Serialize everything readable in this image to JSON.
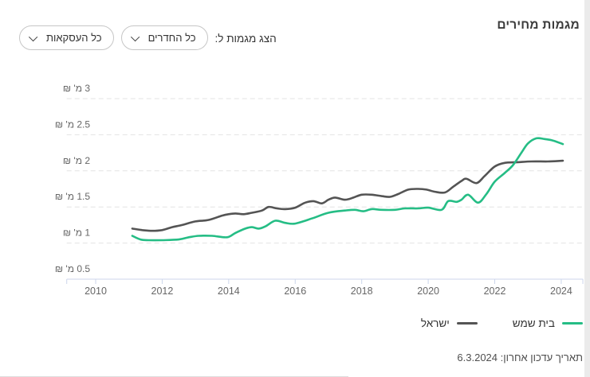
{
  "page": {
    "title": "מגמות מחירים",
    "controls": {
      "label": "הצג מגמות ל:",
      "rooms_dropdown": "כל החדרים",
      "deals_dropdown": "כל העסקאות"
    },
    "legend": [
      {
        "label": "בית שמש",
        "color": "#25bd85"
      },
      {
        "label": "ישראל",
        "color": "#545454"
      }
    ],
    "footer": {
      "last_update": "תאריך עדכון אחרון: 6.3.2024"
    }
  },
  "chart_data": {
    "type": "line",
    "title": "מגמות מחירים",
    "currency_unit": "מ' ₪",
    "x_ticks": [
      2010,
      2012,
      2014,
      2016,
      2018,
      2020,
      2022,
      2024
    ],
    "y_ticks": [
      {
        "value": 0.5,
        "label": "0.5 מ' ₪"
      },
      {
        "value": 1,
        "label": "1 מ' ₪"
      },
      {
        "value": 1.5,
        "label": "1.5 מ' ₪"
      },
      {
        "value": 2,
        "label": "2 מ' ₪"
      },
      {
        "value": 2.5,
        "label": "2.5 מ' ₪"
      },
      {
        "value": 3,
        "label": "3 מ' ₪"
      }
    ],
    "xlim": [
      2009.13,
      2024.65
    ],
    "ylim": [
      0.5,
      3
    ],
    "grid": "dashed-horizontal",
    "legend_position": "bottom-right",
    "colors": {
      "grid": "#e3e3e3",
      "axis": "#ccd6eb",
      "tick_text": "#666666"
    },
    "series": [
      {
        "name": "ישראל",
        "color": "#545454",
        "points": [
          [
            2011.1,
            1.2
          ],
          [
            2011.4,
            1.18
          ],
          [
            2011.7,
            1.17
          ],
          [
            2012.0,
            1.18
          ],
          [
            2012.3,
            1.22
          ],
          [
            2012.6,
            1.25
          ],
          [
            2013.0,
            1.3
          ],
          [
            2013.4,
            1.32
          ],
          [
            2013.8,
            1.38
          ],
          [
            2014.0,
            1.4
          ],
          [
            2014.2,
            1.41
          ],
          [
            2014.45,
            1.4
          ],
          [
            2014.7,
            1.42
          ],
          [
            2015.0,
            1.45
          ],
          [
            2015.2,
            1.5
          ],
          [
            2015.45,
            1.48
          ],
          [
            2015.7,
            1.47
          ],
          [
            2016.0,
            1.49
          ],
          [
            2016.3,
            1.56
          ],
          [
            2016.55,
            1.58
          ],
          [
            2016.8,
            1.55
          ],
          [
            2017.0,
            1.6
          ],
          [
            2017.2,
            1.63
          ],
          [
            2017.5,
            1.6
          ],
          [
            2017.75,
            1.63
          ],
          [
            2018.0,
            1.67
          ],
          [
            2018.3,
            1.67
          ],
          [
            2018.6,
            1.65
          ],
          [
            2018.85,
            1.64
          ],
          [
            2019.1,
            1.68
          ],
          [
            2019.4,
            1.74
          ],
          [
            2019.7,
            1.75
          ],
          [
            2019.95,
            1.74
          ],
          [
            2020.2,
            1.71
          ],
          [
            2020.5,
            1.7
          ],
          [
            2020.75,
            1.78
          ],
          [
            2021.0,
            1.86
          ],
          [
            2021.15,
            1.89
          ],
          [
            2021.45,
            1.83
          ],
          [
            2021.7,
            1.93
          ],
          [
            2022.0,
            2.06
          ],
          [
            2022.3,
            2.11
          ],
          [
            2022.7,
            2.12
          ],
          [
            2023.1,
            2.13
          ],
          [
            2023.6,
            2.13
          ],
          [
            2024.05,
            2.14
          ]
        ]
      },
      {
        "name": "בית שמש",
        "color": "#25bd85",
        "points": [
          [
            2011.1,
            1.1
          ],
          [
            2011.35,
            1.05
          ],
          [
            2011.6,
            1.04
          ],
          [
            2012.0,
            1.04
          ],
          [
            2012.5,
            1.05
          ],
          [
            2012.8,
            1.08
          ],
          [
            2013.1,
            1.1
          ],
          [
            2013.5,
            1.1
          ],
          [
            2013.95,
            1.08
          ],
          [
            2014.2,
            1.14
          ],
          [
            2014.5,
            1.2
          ],
          [
            2014.7,
            1.22
          ],
          [
            2014.9,
            1.2
          ],
          [
            2015.1,
            1.23
          ],
          [
            2015.4,
            1.31
          ],
          [
            2015.7,
            1.28
          ],
          [
            2016.0,
            1.27
          ],
          [
            2016.5,
            1.34
          ],
          [
            2017.0,
            1.42
          ],
          [
            2017.5,
            1.45
          ],
          [
            2017.8,
            1.46
          ],
          [
            2018.05,
            1.44
          ],
          [
            2018.3,
            1.47
          ],
          [
            2018.6,
            1.46
          ],
          [
            2019.0,
            1.46
          ],
          [
            2019.3,
            1.48
          ],
          [
            2019.7,
            1.48
          ],
          [
            2020.0,
            1.49
          ],
          [
            2020.4,
            1.46
          ],
          [
            2020.6,
            1.58
          ],
          [
            2020.85,
            1.57
          ],
          [
            2021.0,
            1.6
          ],
          [
            2021.2,
            1.67
          ],
          [
            2021.5,
            1.56
          ],
          [
            2021.75,
            1.68
          ],
          [
            2022.0,
            1.85
          ],
          [
            2022.3,
            1.97
          ],
          [
            2022.55,
            2.08
          ],
          [
            2022.8,
            2.25
          ],
          [
            2023.0,
            2.38
          ],
          [
            2023.25,
            2.45
          ],
          [
            2023.5,
            2.44
          ],
          [
            2023.75,
            2.42
          ],
          [
            2024.05,
            2.37
          ]
        ]
      }
    ]
  }
}
